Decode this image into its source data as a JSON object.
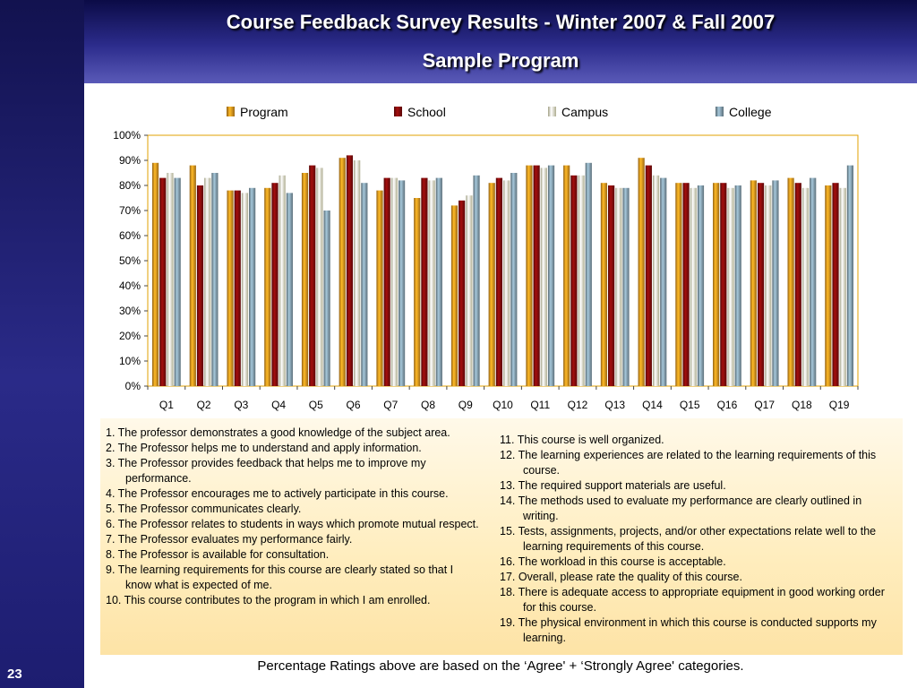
{
  "header": {
    "title": "Course Feedback Survey Results - Winter 2007 & Fall 2007",
    "subtitle": "Sample Program"
  },
  "slide_number": "23",
  "chart_data": {
    "type": "bar",
    "title": "",
    "xlabel": "",
    "ylabel": "",
    "ylim": [
      0,
      100
    ],
    "y_tick_values": [
      0,
      10,
      20,
      30,
      40,
      50,
      60,
      70,
      80,
      90,
      100
    ],
    "y_tick_labels": [
      "0%",
      "10%",
      "20%",
      "30%",
      "40%",
      "50%",
      "60%",
      "70%",
      "80%",
      "90%",
      "100%"
    ],
    "legend_position": "top",
    "grid": false,
    "categories": [
      "Q1",
      "Q2",
      "Q3",
      "Q4",
      "Q5",
      "Q6",
      "Q7",
      "Q8",
      "Q9",
      "Q10",
      "Q11",
      "Q12",
      "Q13",
      "Q14",
      "Q15",
      "Q16",
      "Q17",
      "Q18",
      "Q19"
    ],
    "series": [
      {
        "name": "Program",
        "color": "#d08a1c",
        "values": [
          89,
          88,
          78,
          79,
          85,
          91,
          78,
          75,
          72,
          81,
          88,
          88,
          81,
          91,
          81,
          81,
          82,
          83,
          80
        ]
      },
      {
        "name": "School",
        "color": "#7a0a0a",
        "values": [
          83,
          80,
          78,
          81,
          88,
          92,
          83,
          83,
          74,
          83,
          88,
          84,
          80,
          88,
          81,
          81,
          81,
          81,
          81
        ]
      },
      {
        "name": "Campus",
        "color": "#e8e6c0",
        "values": [
          85,
          83,
          77,
          84,
          87,
          90,
          83,
          82,
          76,
          82,
          87,
          84,
          79,
          84,
          79,
          79,
          80,
          79,
          79
        ]
      },
      {
        "name": "College",
        "color": "#7b94a2",
        "values": [
          83,
          85,
          79,
          77,
          70,
          81,
          82,
          83,
          84,
          85,
          88,
          89,
          79,
          83,
          80,
          80,
          82,
          83,
          88
        ]
      }
    ]
  },
  "definitions_left": [
    "1. The professor demonstrates a good knowledge of the subject area.",
    "2. The Professor helps me to understand and apply information.",
    "3. The Professor provides feedback that helps me to improve my performance.",
    "4. The Professor encourages me to actively participate in this course.",
    "5. The Professor communicates clearly.",
    "6. The Professor relates to students in ways which promote mutual respect.",
    "7. The Professor evaluates my performance fairly.",
    "8. The Professor is available for consultation.",
    "9. The learning requirements for this course are clearly stated so that I know what is expected of me.",
    "10. This course contributes to the program in which I am enrolled."
  ],
  "definitions_right": [
    "11. This course is well organized.",
    "12. The learning experiences are related to the learning requirements of this course.",
    "13. The required support materials are useful.",
    "14. The methods used to evaluate my performance are clearly outlined in writing.",
    "15. Tests, assignments, projects, and/or other expectations relate well to the learning requirements of this course.",
    "16. The workload in this course is acceptable.",
    "17. Overall, please rate the quality of this course.",
    "18. There is adequate access to appropriate equipment in good working order for this course.",
    "19. The physical environment in which this course is conducted supports my learning."
  ],
  "footnote": "Percentage Ratings above are based on the ‘Agree' + ‘Strongly Agree' categories."
}
